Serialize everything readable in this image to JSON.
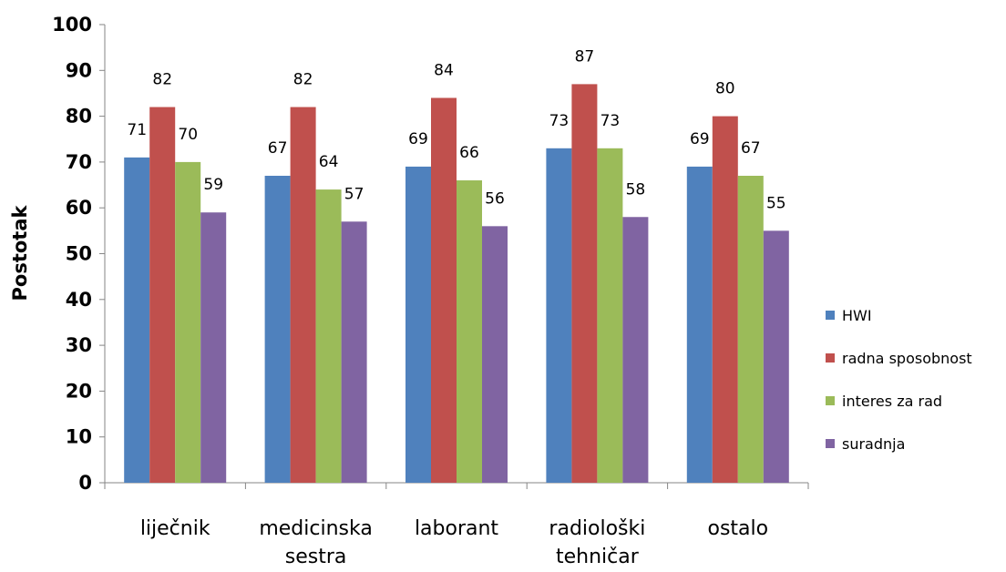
{
  "chart_data": {
    "type": "bar",
    "ylabel": "Postotak",
    "xlabel": "",
    "ylim": [
      0,
      100
    ],
    "yticks": [
      "0",
      "10",
      "20",
      "30",
      "40",
      "50",
      "60",
      "70",
      "80",
      "90",
      "100"
    ],
    "categories": [
      [
        "liječnik"
      ],
      [
        "medicinska",
        "sestra"
      ],
      [
        "laborant"
      ],
      [
        "radiološki",
        "tehničar"
      ],
      [
        "ostalo"
      ]
    ],
    "series": [
      {
        "name": "HWI",
        "color": "#4F81BD",
        "values": [
          71,
          67,
          69,
          73,
          69
        ]
      },
      {
        "name": "radna sposobnost",
        "color": "#C0504D",
        "values": [
          82,
          82,
          84,
          87,
          80
        ]
      },
      {
        "name": "interes za rad",
        "color": "#9BBB59",
        "values": [
          70,
          64,
          66,
          73,
          67
        ]
      },
      {
        "name": "suradnja",
        "color": "#8064A2",
        "values": [
          59,
          57,
          56,
          58,
          55
        ]
      }
    ],
    "legend_position": "right",
    "grid": false,
    "data_labels": true
  }
}
